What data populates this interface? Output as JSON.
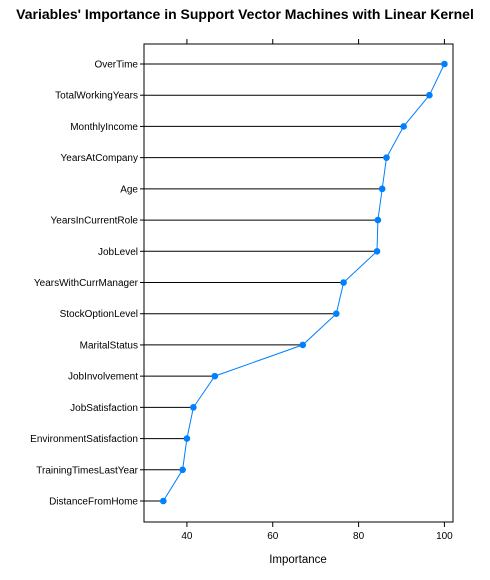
{
  "chart_data": {
    "type": "dotplot",
    "title": "Variables' Importance in Support Vector Machines with Linear Kernel",
    "xlabel": "Importance",
    "ylabel": "",
    "xlim": [
      30,
      102
    ],
    "xticks": [
      40,
      60,
      80,
      100
    ],
    "grid": false,
    "legend": "none",
    "colors": {
      "line": "#0080ff",
      "point": "#0080ff",
      "stem": "#000000",
      "frame": "#000000"
    },
    "categories": [
      "OverTime",
      "TotalWorkingYears",
      "MonthlyIncome",
      "YearsAtCompany",
      "Age",
      "YearsInCurrentRole",
      "JobLevel",
      "YearsWithCurrManager",
      "StockOptionLevel",
      "MaritalStatus",
      "JobInvolvement",
      "JobSatisfaction",
      "EnvironmentSatisfaction",
      "TrainingTimesLastYear",
      "DistanceFromHome"
    ],
    "values": [
      100,
      96.5,
      90.5,
      86.5,
      85.5,
      84.5,
      84.3,
      76.5,
      74.8,
      67,
      46.5,
      41.5,
      40,
      39,
      34.5
    ]
  }
}
